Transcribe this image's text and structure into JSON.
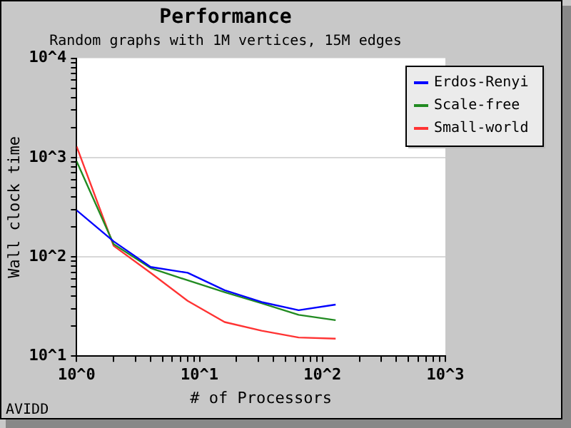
{
  "chart_data": {
    "type": "line",
    "title": "Performance",
    "subtitle": "Random graphs with 1M vertices, 15M edges",
    "xlabel": "# of Processors",
    "ylabel": "Wall clock time",
    "x": [
      1,
      2,
      4,
      8,
      16,
      32,
      64,
      128
    ],
    "series": [
      {
        "name": "Erdos-Renyi",
        "color": "#0000ff",
        "values": [
          294,
          143,
          79,
          69,
          46,
          35,
          29,
          33
        ]
      },
      {
        "name": "Scale-free",
        "color": "#228b22",
        "values": [
          915,
          134,
          77,
          58,
          44,
          34,
          26,
          23
        ]
      },
      {
        "name": "Small-world",
        "color": "#ff3333",
        "values": [
          1290,
          129,
          69,
          36,
          22,
          18,
          15.4,
          15
        ]
      }
    ],
    "log": "xy",
    "xlim": [
      1,
      1000
    ],
    "ylim": [
      10,
      10000
    ],
    "xticks": [
      {
        "value": 1,
        "label": "10^0"
      },
      {
        "value": 2,
        "label": null
      },
      {
        "value": 3,
        "label": null
      },
      {
        "value": 4,
        "label": null
      },
      {
        "value": 5,
        "label": null
      },
      {
        "value": 6,
        "label": null
      },
      {
        "value": 7,
        "label": null
      },
      {
        "value": 8,
        "label": null
      },
      {
        "value": 9,
        "label": null
      },
      {
        "value": 10,
        "label": "10^1"
      },
      {
        "value": 20,
        "label": null
      },
      {
        "value": 30,
        "label": null
      },
      {
        "value": 40,
        "label": null
      },
      {
        "value": 50,
        "label": null
      },
      {
        "value": 60,
        "label": null
      },
      {
        "value": 70,
        "label": null
      },
      {
        "value": 80,
        "label": null
      },
      {
        "value": 90,
        "label": null
      },
      {
        "value": 100,
        "label": "10^2"
      },
      {
        "value": 200,
        "label": null
      },
      {
        "value": 300,
        "label": null
      },
      {
        "value": 400,
        "label": null
      },
      {
        "value": 500,
        "label": null
      },
      {
        "value": 600,
        "label": null
      },
      {
        "value": 700,
        "label": null
      },
      {
        "value": 800,
        "label": null
      },
      {
        "value": 900,
        "label": null
      },
      {
        "value": 1000,
        "label": "10^3"
      }
    ],
    "yticks": [
      {
        "value": 10,
        "label": "10^1"
      },
      {
        "value": 20,
        "label": null
      },
      {
        "value": 30,
        "label": null
      },
      {
        "value": 40,
        "label": null
      },
      {
        "value": 50,
        "label": null
      },
      {
        "value": 60,
        "label": null
      },
      {
        "value": 70,
        "label": null
      },
      {
        "value": 80,
        "label": null
      },
      {
        "value": 90,
        "label": null
      },
      {
        "value": 100,
        "label": "10^2"
      },
      {
        "value": 200,
        "label": null
      },
      {
        "value": 300,
        "label": null
      },
      {
        "value": 400,
        "label": null
      },
      {
        "value": 500,
        "label": null
      },
      {
        "value": 600,
        "label": null
      },
      {
        "value": 700,
        "label": null
      },
      {
        "value": 800,
        "label": null
      },
      {
        "value": 900,
        "label": null
      },
      {
        "value": 1000,
        "label": "10^3"
      },
      {
        "value": 2000,
        "label": null
      },
      {
        "value": 3000,
        "label": null
      },
      {
        "value": 4000,
        "label": null
      },
      {
        "value": 5000,
        "label": null
      },
      {
        "value": 6000,
        "label": null
      },
      {
        "value": 7000,
        "label": null
      },
      {
        "value": 8000,
        "label": null
      },
      {
        "value": 9000,
        "label": null
      },
      {
        "value": 10000,
        "label": "10^4"
      }
    ],
    "grid": "y",
    "legend": "top right",
    "marker": "none",
    "line_style": "solid",
    "annotations": [
      "AVIDD"
    ]
  }
}
